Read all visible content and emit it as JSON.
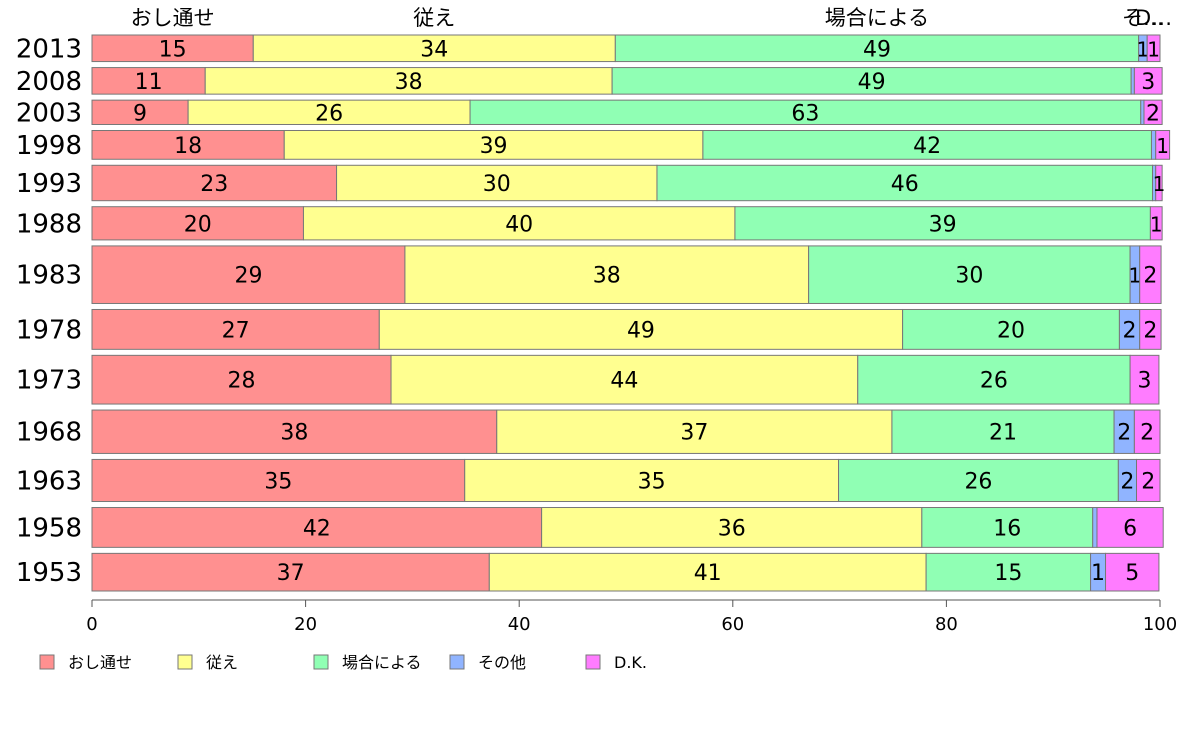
{
  "chart_data": {
    "type": "bar",
    "orientation": "horizontal",
    "stacked": true,
    "categories": [
      "2013",
      "2008",
      "2003",
      "1998",
      "1993",
      "1988",
      "1983",
      "1978",
      "1973",
      "1968",
      "1963",
      "1958",
      "1953"
    ],
    "series": [
      {
        "name": "おし通せ",
        "color": "#ff9090",
        "values": [
          15.1,
          10.6,
          9.0,
          18.0,
          22.9,
          19.8,
          29.3,
          26.9,
          28.0,
          37.9,
          34.9,
          42.1,
          37.2
        ]
      },
      {
        "name": "従え",
        "color": "#ffff90",
        "values": [
          33.9,
          38.1,
          26.4,
          39.2,
          30.0,
          40.4,
          37.8,
          49.0,
          43.7,
          37.0,
          35.0,
          35.6,
          40.9
        ]
      },
      {
        "name": "場合による",
        "color": "#90ffb4",
        "values": [
          49.0,
          48.6,
          62.8,
          42.0,
          46.4,
          38.9,
          30.1,
          20.3,
          25.5,
          20.8,
          26.2,
          16.0,
          15.4
        ]
      },
      {
        "name": "その他",
        "color": "#90b4ff",
        "values": [
          0.8,
          0.3,
          0.3,
          0.4,
          0.3,
          0.0,
          0.9,
          1.9,
          0.0,
          1.9,
          1.7,
          0.4,
          1.4
        ]
      },
      {
        "name": "D.K.",
        "color": "#ff7cff",
        "values": [
          1.2,
          2.6,
          1.7,
          1.3,
          0.6,
          1.1,
          2.0,
          2.0,
          2.7,
          2.4,
          2.2,
          6.2,
          5.0
        ]
      }
    ],
    "row_weights": [
      0.6,
      0.6,
      0.55,
      0.65,
      0.8,
      0.75,
      1.3,
      0.9,
      1.1,
      0.98,
      0.95,
      0.9,
      0.85
    ],
    "top_labels": [
      "おし通せ",
      "従え",
      "場合による",
      "そ…",
      "D…"
    ],
    "xlim": [
      0,
      100
    ],
    "xticks": [
      0,
      20,
      40,
      60,
      80,
      100
    ],
    "xlabel": "",
    "ylabel": "",
    "title": "",
    "grid": false,
    "legend_position": "bottom-left"
  }
}
